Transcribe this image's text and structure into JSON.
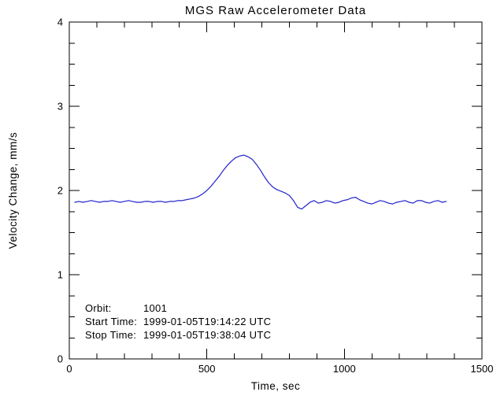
{
  "page": {
    "background": "#ffffff"
  },
  "chart_data": {
    "type": "line",
    "title": "MGS Raw Accelerometer Data",
    "xlabel": "Time, sec",
    "ylabel": "Velocity Change, mm/s",
    "xlim": [
      0,
      1500
    ],
    "ylim": [
      0,
      4
    ],
    "xticks": [
      0,
      500,
      1000,
      1500
    ],
    "yticks": [
      0,
      1,
      2,
      3,
      4
    ],
    "x_minor_step": 100,
    "y_minor_step": 0.25,
    "grid": false,
    "legend": false,
    "axis_color": "#000000",
    "line_color": "#2222cc",
    "series": [
      {
        "name": "Velocity Change",
        "x": [
          20,
          35,
          50,
          65,
          80,
          95,
          110,
          125,
          140,
          155,
          170,
          185,
          200,
          215,
          230,
          245,
          260,
          275,
          290,
          305,
          320,
          335,
          350,
          365,
          380,
          395,
          410,
          425,
          440,
          455,
          470,
          485,
          500,
          515,
          530,
          545,
          560,
          575,
          590,
          605,
          620,
          635,
          650,
          665,
          680,
          695,
          710,
          725,
          740,
          755,
          770,
          785,
          800,
          815,
          830,
          845,
          860,
          875,
          890,
          905,
          920,
          935,
          950,
          965,
          980,
          995,
          1010,
          1025,
          1040,
          1055,
          1070,
          1085,
          1100,
          1115,
          1130,
          1145,
          1160,
          1175,
          1190,
          1205,
          1220,
          1235,
          1250,
          1265,
          1280,
          1295,
          1310,
          1325,
          1340,
          1355,
          1370
        ],
        "y": [
          1.86,
          1.87,
          1.86,
          1.87,
          1.88,
          1.87,
          1.86,
          1.87,
          1.87,
          1.88,
          1.87,
          1.86,
          1.87,
          1.88,
          1.87,
          1.86,
          1.86,
          1.87,
          1.87,
          1.86,
          1.87,
          1.87,
          1.86,
          1.87,
          1.87,
          1.88,
          1.88,
          1.89,
          1.9,
          1.91,
          1.93,
          1.96,
          2.0,
          2.05,
          2.11,
          2.17,
          2.24,
          2.3,
          2.35,
          2.39,
          2.41,
          2.42,
          2.4,
          2.37,
          2.31,
          2.24,
          2.16,
          2.09,
          2.04,
          2.01,
          1.99,
          1.97,
          1.94,
          1.88,
          1.8,
          1.78,
          1.82,
          1.86,
          1.88,
          1.85,
          1.86,
          1.88,
          1.87,
          1.85,
          1.86,
          1.88,
          1.89,
          1.91,
          1.92,
          1.89,
          1.87,
          1.85,
          1.84,
          1.86,
          1.88,
          1.87,
          1.85,
          1.84,
          1.86,
          1.87,
          1.88,
          1.86,
          1.85,
          1.88,
          1.88,
          1.86,
          1.85,
          1.87,
          1.88,
          1.86,
          1.87
        ]
      }
    ],
    "annotations": {
      "rows": [
        {
          "label": "Orbit:",
          "value": "1001"
        },
        {
          "label": "Start Time:",
          "value": "1999-01-05T19:14:22 UTC"
        },
        {
          "label": "Stop Time:",
          "value": "1999-01-05T19:38:04 UTC"
        }
      ]
    }
  }
}
